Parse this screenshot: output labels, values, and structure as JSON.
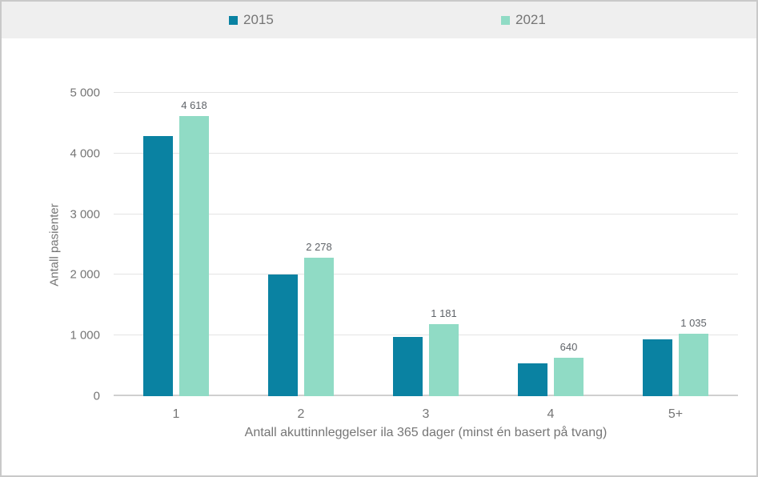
{
  "chart_data": {
    "type": "bar",
    "title": "",
    "categories": [
      "1",
      "2",
      "3",
      "4",
      "5+"
    ],
    "series": [
      {
        "name": "2015",
        "color": "#0a82a2",
        "values": [
          4290,
          2000,
          975,
          535,
          935
        ]
      },
      {
        "name": "2021",
        "color": "#90dbc5",
        "values": [
          4618,
          2278,
          1181,
          640,
          1035
        ],
        "labels": [
          "4 618",
          "2 278",
          "1 181",
          "640",
          "1 035"
        ]
      }
    ],
    "xlabel": "Antall akuttinnleggelser ila 365 dager (minst én basert på tvang)",
    "ylabel": "Antall pasienter",
    "ylim": [
      0,
      5000
    ],
    "yticks": [
      0,
      1000,
      2000,
      3000,
      4000,
      5000
    ],
    "ytick_labels": [
      "0",
      "1 000",
      "2 000",
      "3 000",
      "4 000",
      "5 000"
    ],
    "grid": true,
    "legend_position": "top"
  },
  "colors": {
    "legend_band_bg": "#efefef",
    "gridline": "#e4e4e4",
    "baseline": "#cfcfcf",
    "axis_text": "#757575",
    "data_label_text": "#5f6368",
    "frame_border": "#c9c9c9"
  }
}
